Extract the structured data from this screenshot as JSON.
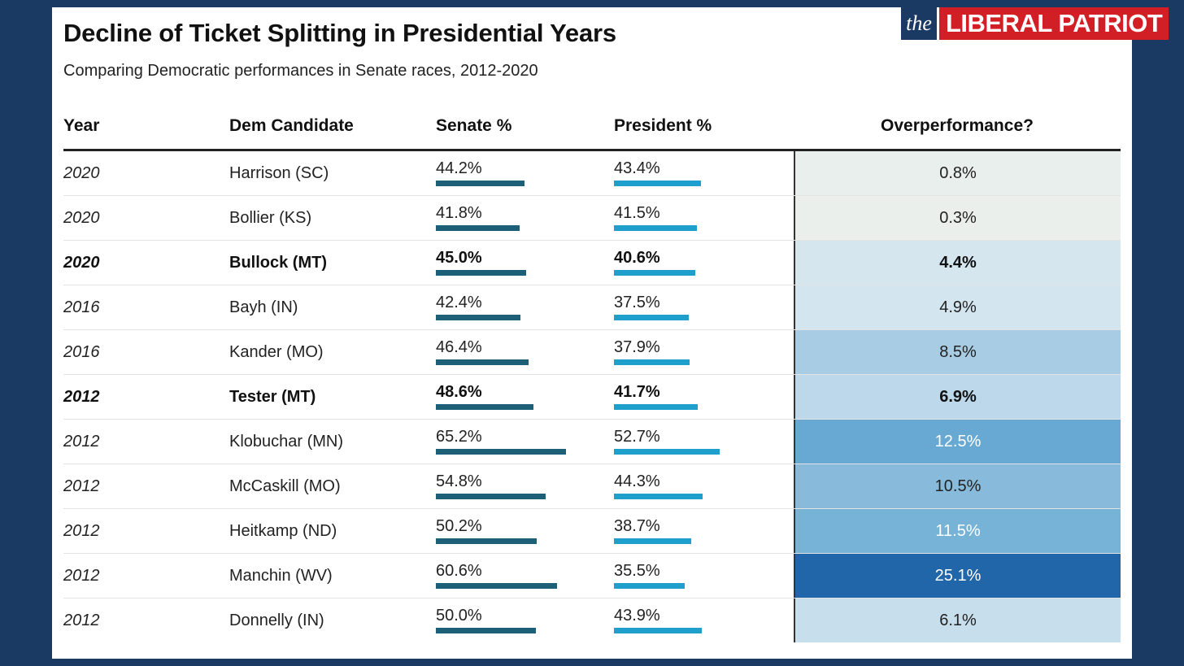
{
  "title": "Decline of Ticket Splitting in Presidential Years",
  "subtitle": "Comparing Democratic performances in Senate races, 2012-2020",
  "logo": {
    "the": "the",
    "name": "LIBERAL PATRIOT"
  },
  "colors": {
    "background": "#1b3a63",
    "senate_bar": "#1c5f76",
    "president_bar": "#1fa0cc",
    "logo_red": "#d21f26"
  },
  "chart_data": {
    "type": "table",
    "columns": [
      "Year",
      "Dem Candidate",
      "Senate %",
      "President %",
      "Overperformance?"
    ],
    "bar_scale_max": 100,
    "rows": [
      {
        "year": "2020",
        "candidate": "Harrison (SC)",
        "senate_label": "44.2%",
        "senate": 44.2,
        "president_label": "43.4%",
        "president": 43.4,
        "over_label": "0.8%",
        "over": 0.8,
        "bold": false,
        "bg": "#e9efec",
        "fg": "#222222"
      },
      {
        "year": "2020",
        "candidate": "Bollier (KS)",
        "senate_label": "41.8%",
        "senate": 41.8,
        "president_label": "41.5%",
        "president": 41.5,
        "over_label": "0.3%",
        "over": 0.3,
        "bold": false,
        "bg": "#eaefec",
        "fg": "#222222"
      },
      {
        "year": "2020",
        "candidate": "Bullock (MT)",
        "senate_label": "45.0%",
        "senate": 45.0,
        "president_label": "40.6%",
        "president": 40.6,
        "over_label": "4.4%",
        "over": 4.4,
        "bold": true,
        "bg": "#d5e6ef",
        "fg": "#111111"
      },
      {
        "year": "2016",
        "candidate": "Bayh (IN)",
        "senate_label": "42.4%",
        "senate": 42.4,
        "president_label": "37.5%",
        "president": 37.5,
        "over_label": "4.9%",
        "over": 4.9,
        "bold": false,
        "bg": "#d3e5ef",
        "fg": "#222222"
      },
      {
        "year": "2016",
        "candidate": "Kander (MO)",
        "senate_label": "46.4%",
        "senate": 46.4,
        "president_label": "37.9%",
        "president": 37.9,
        "over_label": "8.5%",
        "over": 8.5,
        "bold": false,
        "bg": "#a7cce3",
        "fg": "#222222"
      },
      {
        "year": "2012",
        "candidate": "Tester (MT)",
        "senate_label": "48.6%",
        "senate": 48.6,
        "president_label": "41.7%",
        "president": 41.7,
        "over_label": "6.9%",
        "over": 6.9,
        "bold": true,
        "bg": "#bcd8ea",
        "fg": "#111111"
      },
      {
        "year": "2012",
        "candidate": "Klobuchar (MN)",
        "senate_label": "65.2%",
        "senate": 65.2,
        "president_label": "52.7%",
        "president": 52.7,
        "over_label": "12.5%",
        "over": 12.5,
        "bold": false,
        "bg": "#67a9d2",
        "fg": "#ffffff"
      },
      {
        "year": "2012",
        "candidate": "McCaskill (MO)",
        "senate_label": "54.8%",
        "senate": 54.8,
        "president_label": "44.3%",
        "president": 44.3,
        "over_label": "10.5%",
        "over": 10.5,
        "bold": false,
        "bg": "#88bbdb",
        "fg": "#222222"
      },
      {
        "year": "2012",
        "candidate": "Heitkamp (ND)",
        "senate_label": "50.2%",
        "senate": 50.2,
        "president_label": "38.7%",
        "president": 38.7,
        "over_label": "11.5%",
        "over": 11.5,
        "bold": false,
        "bg": "#77b2d7",
        "fg": "#ffffff"
      },
      {
        "year": "2012",
        "candidate": "Manchin (WV)",
        "senate_label": "60.6%",
        "senate": 60.6,
        "president_label": "35.5%",
        "president": 35.5,
        "over_label": "25.1%",
        "over": 25.1,
        "bold": false,
        "bg": "#2166a8",
        "fg": "#ffffff"
      },
      {
        "year": "2012",
        "candidate": "Donnelly (IN)",
        "senate_label": "50.0%",
        "senate": 50.0,
        "president_label": "43.9%",
        "president": 43.9,
        "over_label": "6.1%",
        "over": 6.1,
        "bold": false,
        "bg": "#c7dfed",
        "fg": "#222222"
      }
    ]
  }
}
